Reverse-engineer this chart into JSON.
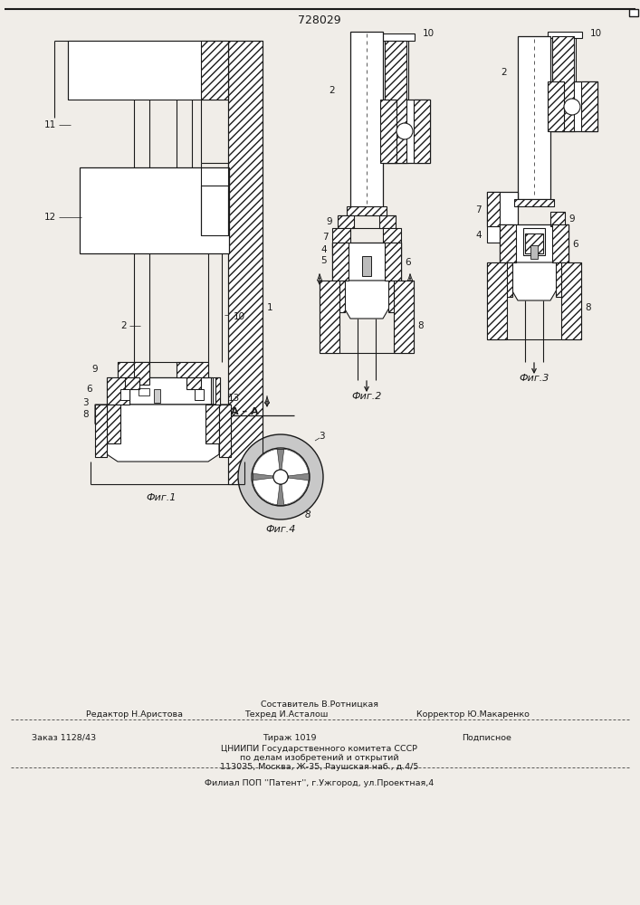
{
  "title": "728029",
  "bg_color": "#f0ede8",
  "line_color": "#1a1a1a",
  "fig1_label": "Фиг.1",
  "fig2_label": "Фиг.2",
  "fig3_label": "Фиг.3",
  "fig4_label": "Фиг.4",
  "aa_label": "А – А",
  "footer1": "Составитель В.Ротницкая",
  "footer2a": "Редактор Н.Аристова",
  "footer2b": "Техред И.Асталош",
  "footer2c": "Корректор Ю.Макаренко",
  "footer3a": "Заказ 1128/43",
  "footer3b": "Тираж 1019",
  "footer3c": "Подписное",
  "footer4": "ЦНИИПИ Государственного комитета СССР",
  "footer5": "по делам изобретений и открытий",
  "footer6": "113035, Москва, Ж-35, Раушская наб., д.4/5",
  "footer7": "Филиал ПОП ''Патент'', г.Ужгород, ул.Проектная,4"
}
